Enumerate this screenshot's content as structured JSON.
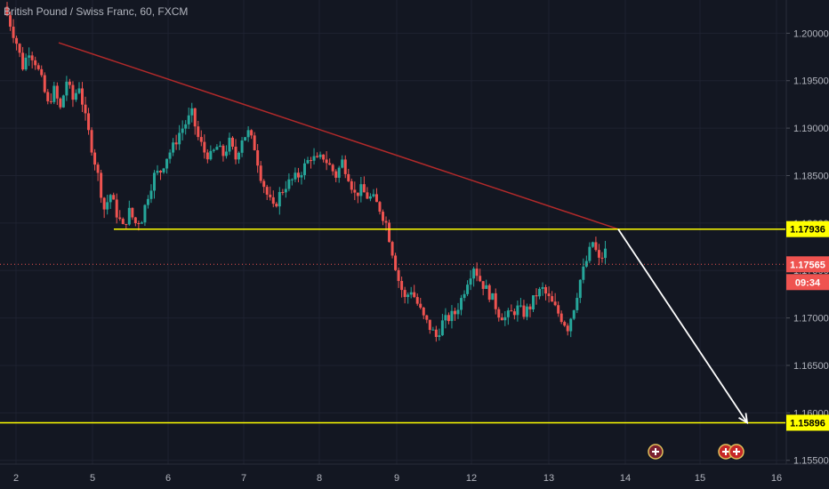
{
  "header": {
    "title": "British Pound / Swiss Franc, 60, FXCM"
  },
  "colors": {
    "background": "#131722",
    "grid": "#1e2230",
    "up": "#26a69a",
    "down": "#ef5350",
    "support": "#ffff00",
    "trend": "#b22a2a",
    "arrow": "#ffffff",
    "current_price": "#ef5350"
  },
  "chart_data": {
    "type": "candlestick",
    "title": "British Pound / Swiss Franc, 60, FXCM",
    "x_tick_labels": [
      "2",
      "5",
      "6",
      "7",
      "8",
      "9",
      "12",
      "13",
      "14",
      "15",
      "16"
    ],
    "y_tick_labels": [
      "1.20000",
      "1.19500",
      "1.19000",
      "1.18500",
      "1.18000",
      "1.17500",
      "1.17000",
      "1.16500",
      "1.16000",
      "1.15500"
    ],
    "ylim": [
      1.1546,
      1.2035
    ],
    "grid": true,
    "support_levels": [
      1.17936,
      1.15896
    ],
    "price_tags": [
      {
        "label": "1.17936",
        "value": 1.17936,
        "kind": "support"
      },
      {
        "label": "1.17565",
        "value": 1.17565,
        "kind": "current"
      },
      {
        "label": "09:34",
        "kind": "countdown"
      },
      {
        "label": "1.15896",
        "value": 1.15896,
        "kind": "support"
      }
    ],
    "current_price": 1.17565,
    "countdown": "09:34",
    "trendline": {
      "from": {
        "x": "4",
        "y": 1.199
      },
      "to": {
        "x": "13",
        "y": 1.17936
      }
    },
    "projection_arrow": {
      "from": {
        "x": "13",
        "y": 1.17936
      },
      "to": {
        "x": "15",
        "y": 1.15896
      }
    },
    "price_path": [
      1.2028,
      1.201,
      1.199,
      1.1965,
      1.1982,
      1.197,
      1.195,
      1.1925,
      1.194,
      1.192,
      1.195,
      1.193,
      1.1945,
      1.191,
      1.188,
      1.185,
      1.1815,
      1.183,
      1.181,
      1.1795,
      1.1812,
      1.18,
      1.1805,
      1.183,
      1.185,
      1.1855,
      1.187,
      1.188,
      1.1895,
      1.1905,
      1.1915,
      1.189,
      1.1875,
      1.187,
      1.188,
      1.1872,
      1.1885,
      1.1868,
      1.189,
      1.1895,
      1.188,
      1.185,
      1.183,
      1.1815,
      1.183,
      1.184,
      1.1845,
      1.185,
      1.186,
      1.187,
      1.1865,
      1.187,
      1.186,
      1.185,
      1.1865,
      1.185,
      1.183,
      1.1835,
      1.1828,
      1.1825,
      1.1815,
      1.18,
      1.177,
      1.174,
      1.172,
      1.173,
      1.1715,
      1.17,
      1.169,
      1.168,
      1.1695,
      1.17,
      1.1705,
      1.172,
      1.174,
      1.1755,
      1.174,
      1.173,
      1.172,
      1.1705,
      1.17,
      1.1705,
      1.171,
      1.1705,
      1.1712,
      1.1725,
      1.173,
      1.172,
      1.171,
      1.17,
      1.169,
      1.1712,
      1.174,
      1.176,
      1.178,
      1.176,
      1.177
    ]
  }
}
